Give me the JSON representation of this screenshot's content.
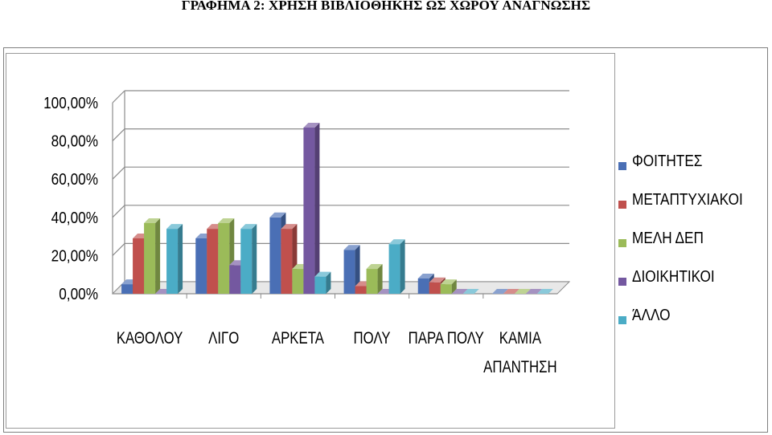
{
  "page_title": "ΓΡΑΦΗΜΑ 2: ΧΡΗΣΗ ΒΙΒΛΙΟΘΗΚΗΣ ΩΣ ΧΩΡΟΥ ΑΝΑΓΝΩΣΗΣ",
  "chart_data": {
    "type": "bar",
    "title": "",
    "categories": [
      "ΚΑΘΟΛΟΥ",
      "ΛΙΓΟ",
      "ΑΡΚΕΤΑ",
      "ΠΟΛΥ",
      "ΠΑΡΑ ΠΟΛΥ",
      "ΚΑΜΙΑ ΑΠΑΝΤΗΣΗ"
    ],
    "ylim": [
      0,
      100
    ],
    "yticks": [
      "0,00%",
      "20,00%",
      "40,00%",
      "60,00%",
      "80,00%",
      "100,00%"
    ],
    "grid": true,
    "legend_position": "right",
    "series": [
      {
        "name": "ΦΟΙΤΗΤΕΣ",
        "color": "#4a6fb5",
        "values": [
          5,
          29,
          40,
          23,
          8,
          0
        ]
      },
      {
        "name": "ΜΕΤΑΠΤΥΧΙΑΚΟΙ",
        "color": "#c0504d",
        "values": [
          29,
          34,
          34,
          4,
          6,
          0
        ]
      },
      {
        "name": "ΜΕΛΗ ΔΕΠ",
        "color": "#9bbb59",
        "values": [
          37,
          37,
          13,
          13,
          5,
          0
        ]
      },
      {
        "name": "ΔΙΟΙΚΗΤΙΚΟΙ",
        "color": "#7458a0",
        "values": [
          0,
          15,
          87,
          0,
          0,
          0
        ]
      },
      {
        "name": "ΆΛΛΟ",
        "color": "#4bacc6",
        "values": [
          34,
          34,
          9,
          26,
          0,
          0
        ]
      }
    ]
  }
}
